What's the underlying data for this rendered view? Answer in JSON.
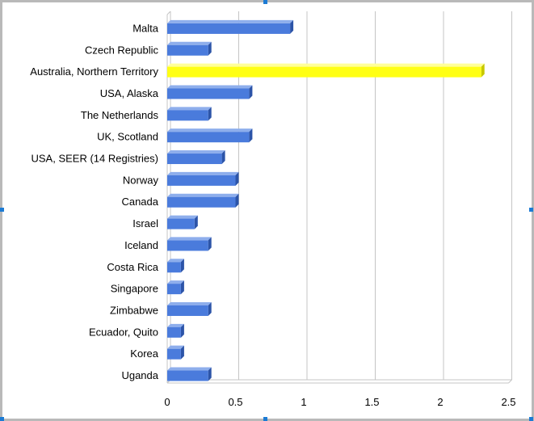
{
  "chart_data": {
    "type": "bar",
    "orientation": "horizontal",
    "style": "3d",
    "categories": [
      "Malta",
      "Czech Republic",
      "Australia, Northern Territory",
      "USA, Alaska",
      "The Netherlands",
      "UK, Scotland",
      "USA, SEER (14 Registries)",
      "Norway",
      "Canada",
      "Israel",
      "Iceland",
      "Costa Rica",
      "Singapore",
      "Zimbabwe",
      "Ecuador, Quito",
      "Korea",
      "Uganda"
    ],
    "values": [
      0.9,
      0.3,
      2.3,
      0.6,
      0.3,
      0.6,
      0.4,
      0.5,
      0.5,
      0.2,
      0.3,
      0.1,
      0.1,
      0.3,
      0.1,
      0.1,
      0.3
    ],
    "highlight_index": 2,
    "colors": {
      "bar": "#4a7bdc",
      "bar_dark": "#2c54a8",
      "bar_light": "#8eaeec",
      "highlight": "#ffff14",
      "highlight_dark": "#c8c800",
      "highlight_light": "#ffff99",
      "grid": "#c4c4c4",
      "frame": "#b9b9b9",
      "handle": "#1c7bd4"
    },
    "xlim": [
      0,
      2.5
    ],
    "xticks": [
      "0",
      "0.5",
      "1",
      "1.5",
      "2",
      "2.5"
    ],
    "grid": true,
    "title": "",
    "xlabel": "",
    "ylabel": ""
  }
}
